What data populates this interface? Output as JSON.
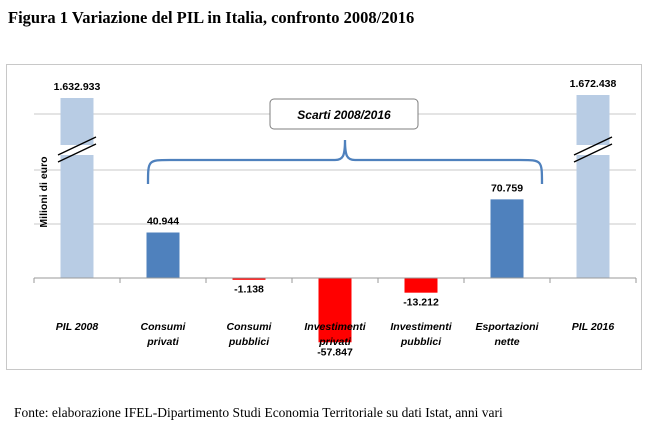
{
  "figure_title": "Figura 1 Variazione del PIL in Italia, confronto 2008/2016",
  "source_note": "Fonte: elaborazione IFEL-Dipartimento Studi Economia Territoriale su dati Istat, anni vari",
  "chart_data": {
    "type": "bar",
    "title": "Figura 1 Variazione del PIL in Italia, confronto 2008/2016",
    "ylabel": "Milioni di euro",
    "xlabel": "",
    "bracket_label": "Scarti 2008/2016",
    "axis_break_on_totals": true,
    "grid": true,
    "legend": "none",
    "categories": [
      [
        "PIL 2008"
      ],
      [
        "Consumi",
        "privati"
      ],
      [
        "Consumi",
        "pubblici"
      ],
      [
        "Investimenti",
        "privati"
      ],
      [
        "Investimenti",
        "pubblici"
      ],
      [
        "Esportazioni",
        "nette"
      ],
      [
        "PIL 2016"
      ]
    ],
    "values": [
      1632933,
      40944,
      -1138,
      -57847,
      -13212,
      70759,
      1672438
    ],
    "value_labels": [
      "1.632.933",
      "40.944",
      "-1.138",
      "-57.847",
      "-13.212",
      "70.759",
      "1.672.438"
    ],
    "bar_kind": [
      "total",
      "increase",
      "decrease",
      "decrease",
      "decrease",
      "increase",
      "total"
    ],
    "colors": {
      "total": "#b8cce4",
      "increase": "#4f81bd",
      "decrease": "#ff0000",
      "gridline": "#c8c8c8",
      "bracket": "#4f81bd"
    }
  }
}
